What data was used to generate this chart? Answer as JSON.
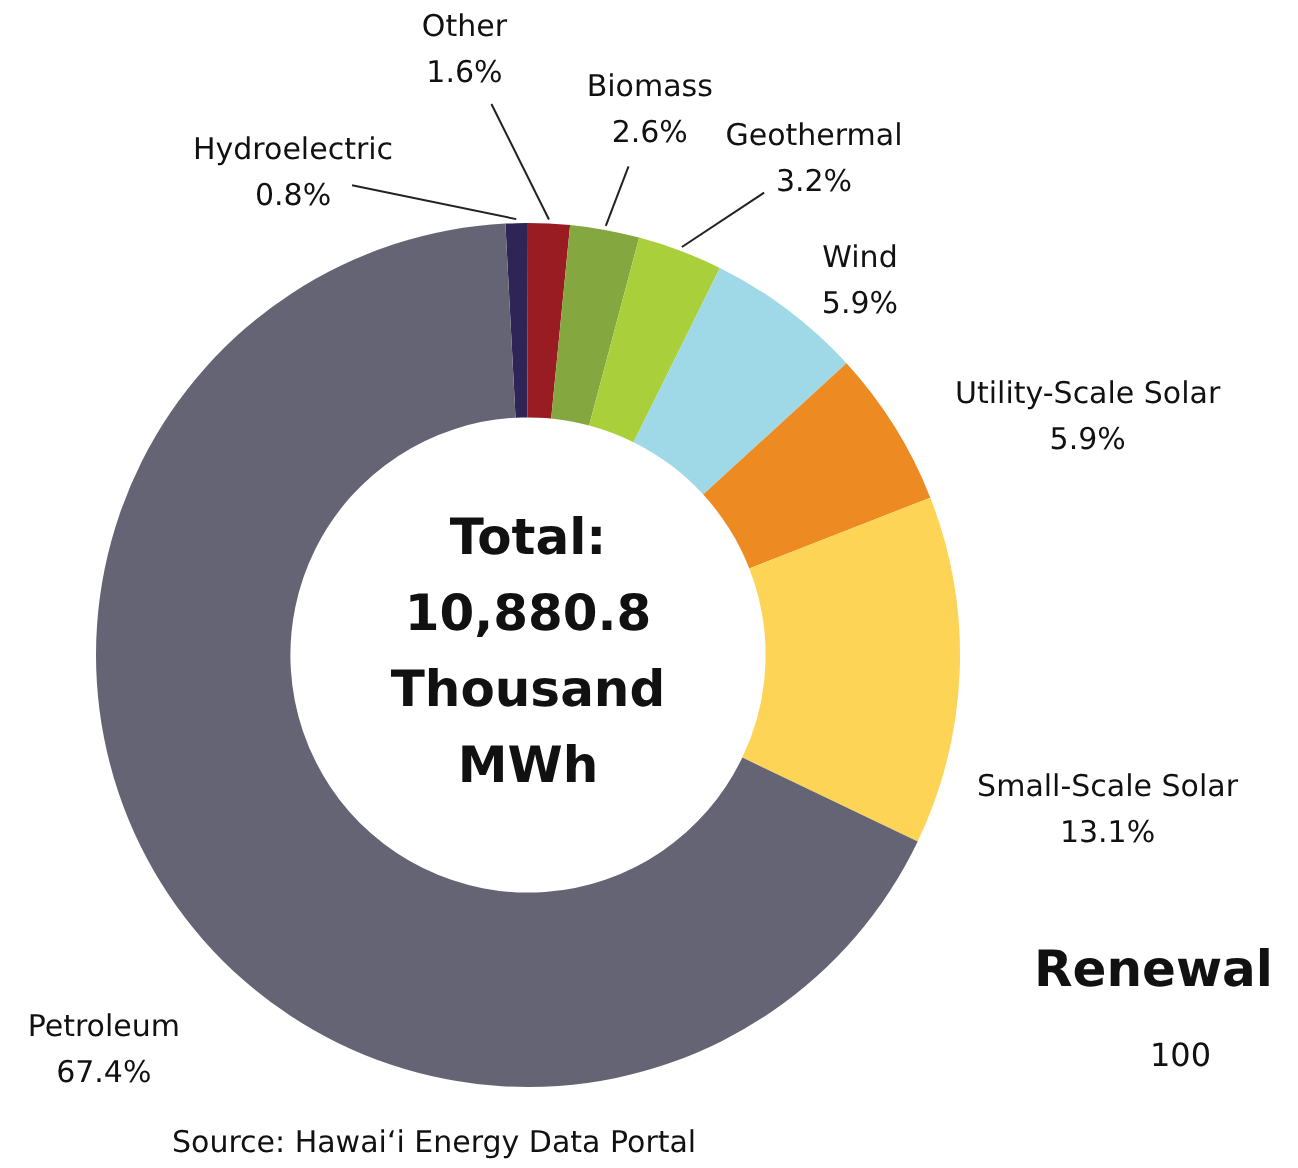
{
  "chart_data": {
    "type": "donut",
    "categories": [
      "Hydroelectric",
      "Other",
      "Biomass",
      "Geothermal",
      "Wind",
      "Utility-Scale Solar",
      "Small-Scale Solar",
      "Petroleum"
    ],
    "values": [
      0.8,
      1.6,
      2.6,
      3.2,
      5.9,
      5.9,
      13.1,
      67.4
    ],
    "colors": [
      "#2e2456",
      "#981c22",
      "#84a83f",
      "#a9cf3b",
      "#9fd8e6",
      "#ee8a22",
      "#fdd455",
      "#646474"
    ],
    "value_labels": [
      "0.8%",
      "1.6%",
      "2.6%",
      "3.2%",
      "5.9%",
      "5.9%",
      "13.1%",
      "67.4%"
    ],
    "legend": false,
    "annotations": [
      "Total: 10,880.8 Thousand MWh",
      "Source: Hawaiʻi Energy Data Portal",
      "Renewal",
      "100"
    ]
  }
}
